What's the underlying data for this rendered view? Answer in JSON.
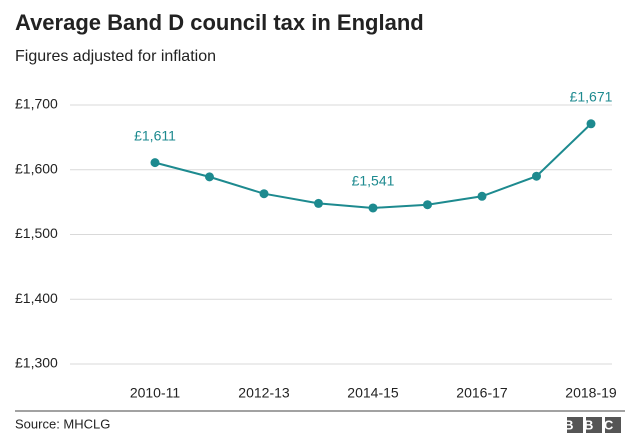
{
  "chart_data": {
    "type": "line",
    "title": "Average Band D council tax in England",
    "subtitle": "Figures adjusted for inflation",
    "source": "Source: MHCLG",
    "logo": "BBC",
    "categories": [
      "2010-11",
      null,
      "2012-13",
      null,
      "2014-15",
      null,
      "2016-17",
      null,
      "2018-19"
    ],
    "values": [
      1611,
      1589,
      1563,
      1548,
      1541,
      1546,
      1559,
      1590,
      1671
    ],
    "value_labels": [
      "£1,611",
      null,
      null,
      null,
      "£1,541",
      null,
      null,
      null,
      "£1,671"
    ],
    "color": "#1d8a8f",
    "ylim": [
      1300,
      1700
    ],
    "yticks": [
      {
        "value": 1300,
        "label": "£1,300"
      },
      {
        "value": 1400,
        "label": "£1,400"
      },
      {
        "value": 1500,
        "label": "£1,500"
      },
      {
        "value": 1600,
        "label": "£1,600"
      },
      {
        "value": 1700,
        "label": "£1,700"
      }
    ],
    "grid": true
  }
}
